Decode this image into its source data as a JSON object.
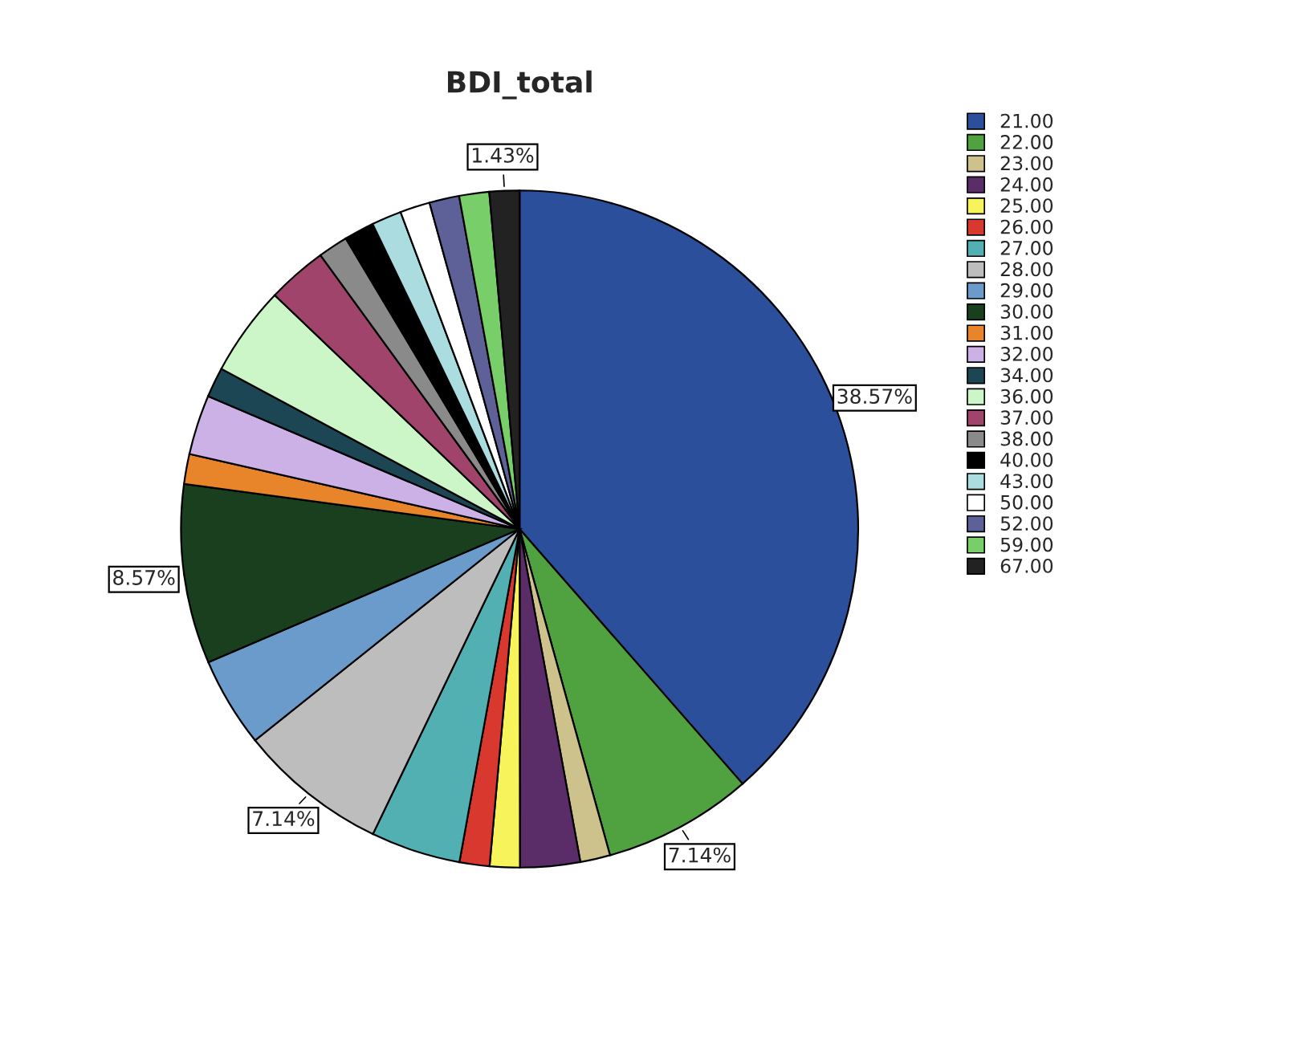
{
  "chart_data": {
    "type": "pie",
    "title": "BDI_total",
    "categories": [
      "21.00",
      "22.00",
      "23.00",
      "24.00",
      "25.00",
      "26.00",
      "27.00",
      "28.00",
      "29.00",
      "30.00",
      "31.00",
      "32.00",
      "34.00",
      "36.00",
      "37.00",
      "38.00",
      "40.00",
      "43.00",
      "50.00",
      "52.00",
      "59.00",
      "67.00"
    ],
    "values": [
      38.57,
      7.14,
      1.43,
      2.86,
      1.43,
      1.43,
      4.29,
      7.14,
      4.29,
      8.57,
      1.43,
      2.86,
      1.43,
      4.29,
      2.86,
      1.43,
      1.43,
      1.43,
      1.43,
      1.43,
      1.43,
      1.43
    ],
    "value_labels": [
      "38.57%",
      "7.14%",
      null,
      null,
      null,
      null,
      null,
      "7.14%",
      null,
      "8.57%",
      null,
      null,
      null,
      null,
      null,
      null,
      null,
      null,
      null,
      null,
      null,
      "1.43%"
    ],
    "colors": [
      "#2b4f9a",
      "#4fa23f",
      "#cdc28c",
      "#5a2d68",
      "#f7f35a",
      "#d9382e",
      "#52b0b3",
      "#bdbdbd",
      "#6a9bcb",
      "#1a3f1f",
      "#e8852a",
      "#cbb1e6",
      "#1d4654",
      "#ccf6c8",
      "#a0446b",
      "#8a8a8a",
      "#000000",
      "#abdde0",
      "#ffffff",
      "#5d6197",
      "#78cf6a",
      "#222222"
    ],
    "legend": "right"
  }
}
